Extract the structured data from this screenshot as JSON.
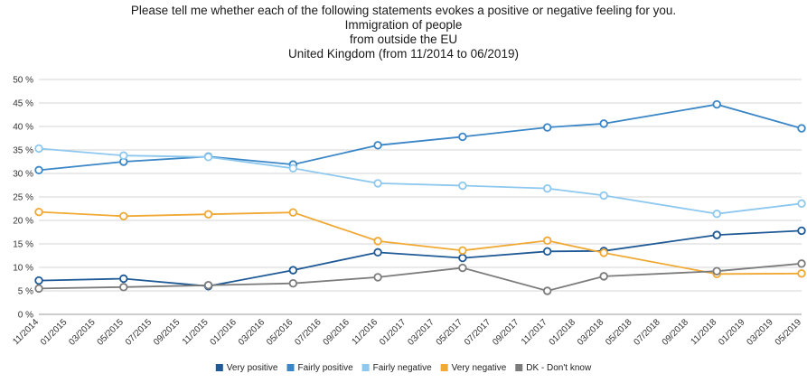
{
  "chart_data": {
    "type": "line",
    "title_lines": [
      "Please tell me whether each of the following statements evokes a positive or negative feeling for you.",
      "Immigration of people",
      "from outside the EU",
      "United Kingdom (from 11/2014 to 06/2019)"
    ],
    "x_tick_labels": [
      "11/2014",
      "01/2015",
      "03/2015",
      "05/2015",
      "07/2015",
      "09/2015",
      "11/2015",
      "01/2016",
      "03/2016",
      "05/2016",
      "07/2016",
      "09/2016",
      "11/2016",
      "01/2017",
      "03/2017",
      "05/2017",
      "07/2017",
      "09/2017",
      "11/2017",
      "01/2018",
      "03/2018",
      "05/2018",
      "07/2018",
      "09/2018",
      "11/2018",
      "01/2019",
      "03/2019",
      "05/2019"
    ],
    "y_tick_labels": [
      "0 %",
      "5 %",
      "10 %",
      "15 %",
      "20 %",
      "25 %",
      "30 %",
      "35 %",
      "40 %",
      "45 %",
      "50 %"
    ],
    "ylim": [
      0,
      50
    ],
    "grid": true,
    "legend_position": "bottom",
    "survey_indices": [
      0,
      3,
      6,
      9,
      12,
      15,
      18,
      20,
      24,
      27
    ],
    "series": [
      {
        "name": "Very positive",
        "color": "#1f5a96",
        "values": [
          7.2,
          7.6,
          6.0,
          9.4,
          13.2,
          12.0,
          13.4,
          13.5,
          16.9,
          17.8
        ]
      },
      {
        "name": "Fairly positive",
        "color": "#3a86c6",
        "values": [
          30.7,
          32.5,
          33.6,
          31.9,
          36.0,
          37.8,
          39.8,
          40.6,
          44.7,
          39.6
        ]
      },
      {
        "name": "Fairly negative",
        "color": "#8ec8ee",
        "values": [
          35.3,
          33.8,
          33.5,
          31.1,
          27.9,
          27.4,
          26.8,
          25.3,
          21.4,
          23.6
        ]
      },
      {
        "name": "Very negative",
        "color": "#f0a935",
        "values": [
          21.8,
          20.9,
          21.3,
          21.7,
          15.6,
          13.6,
          15.7,
          13.1,
          8.6,
          8.7
        ]
      },
      {
        "name": "DK - Don't know",
        "color": "#7c7c7c",
        "values": [
          5.5,
          5.8,
          6.2,
          6.6,
          7.9,
          9.9,
          5.0,
          8.1,
          9.2,
          10.8
        ]
      }
    ]
  }
}
